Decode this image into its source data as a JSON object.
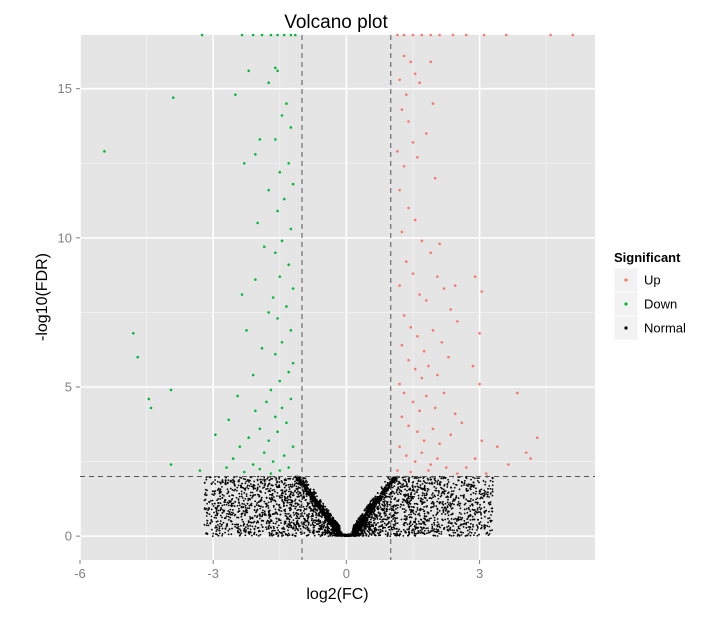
{
  "chart_data": {
    "type": "scatter",
    "title": "Volcano plot",
    "xlabel": "log2(FC)",
    "ylabel": "-log10(FDR)",
    "xlim": [
      -6,
      5.6
    ],
    "ylim": [
      -0.8,
      16.8
    ],
    "x_ticks": [
      {
        "value": -6,
        "label": "-6"
      },
      {
        "value": -3,
        "label": "-3"
      },
      {
        "value": 0,
        "label": "0"
      },
      {
        "value": 3,
        "label": "3"
      }
    ],
    "y_ticks": [
      {
        "value": 0,
        "label": "0"
      },
      {
        "value": 5,
        "label": "5"
      },
      {
        "value": 10,
        "label": "10"
      },
      {
        "value": 15,
        "label": "15"
      }
    ],
    "grid": true,
    "legend": {
      "title": "Significant",
      "position": "right"
    },
    "thresholds": {
      "log2fc": [
        -1,
        1
      ],
      "neg_log10_fdr": 2
    },
    "series": [
      {
        "name": "Up",
        "color": "#f8766d",
        "points": [
          [
            1.15,
            16.8
          ],
          [
            1.3,
            16.8
          ],
          [
            1.5,
            16.8
          ],
          [
            1.7,
            16.8
          ],
          [
            1.9,
            16.8
          ],
          [
            2.1,
            16.8
          ],
          [
            2.4,
            16.8
          ],
          [
            2.7,
            16.8
          ],
          [
            3.1,
            16.8
          ],
          [
            3.6,
            16.8
          ],
          [
            4.6,
            16.8
          ],
          [
            5.1,
            16.8
          ],
          [
            1.3,
            16.1
          ],
          [
            1.45,
            15.9
          ],
          [
            1.55,
            15.5
          ],
          [
            1.65,
            15.2
          ],
          [
            1.9,
            15.9
          ],
          [
            1.2,
            15.3
          ],
          [
            1.35,
            14.8
          ],
          [
            1.25,
            14.3
          ],
          [
            1.4,
            13.9
          ],
          [
            1.5,
            13.2
          ],
          [
            1.15,
            12.9
          ],
          [
            1.3,
            12.4
          ],
          [
            1.6,
            12.7
          ],
          [
            1.95,
            14.5
          ],
          [
            1.8,
            13.5
          ],
          [
            2.0,
            12.0
          ],
          [
            1.2,
            11.6
          ],
          [
            1.4,
            11.0
          ],
          [
            1.55,
            10.6
          ],
          [
            1.25,
            10.2
          ],
          [
            1.7,
            9.9
          ],
          [
            1.9,
            9.5
          ],
          [
            2.1,
            9.8
          ],
          [
            1.35,
            9.2
          ],
          [
            1.5,
            8.8
          ],
          [
            1.2,
            8.4
          ],
          [
            1.65,
            8.1
          ],
          [
            1.8,
            7.9
          ],
          [
            2.05,
            8.7
          ],
          [
            2.2,
            8.3
          ],
          [
            2.45,
            8.4
          ],
          [
            2.9,
            8.7
          ],
          [
            3.05,
            8.2
          ],
          [
            2.35,
            7.6
          ],
          [
            1.3,
            7.4
          ],
          [
            1.45,
            7.0
          ],
          [
            1.6,
            6.7
          ],
          [
            1.25,
            6.4
          ],
          [
            1.75,
            6.2
          ],
          [
            1.95,
            6.9
          ],
          [
            2.15,
            6.5
          ],
          [
            2.5,
            7.2
          ],
          [
            3.0,
            6.8
          ],
          [
            1.4,
            5.9
          ],
          [
            1.55,
            5.6
          ],
          [
            1.7,
            5.3
          ],
          [
            1.2,
            5.1
          ],
          [
            1.85,
            5.7
          ],
          [
            2.05,
            5.4
          ],
          [
            2.3,
            6.0
          ],
          [
            2.85,
            5.7
          ],
          [
            3.0,
            5.1
          ],
          [
            1.3,
            4.8
          ],
          [
            1.5,
            4.5
          ],
          [
            1.65,
            4.2
          ],
          [
            1.8,
            4.7
          ],
          [
            2.0,
            4.3
          ],
          [
            2.2,
            4.8
          ],
          [
            2.45,
            4.1
          ],
          [
            1.25,
            4.0
          ],
          [
            1.4,
            3.7
          ],
          [
            1.6,
            3.5
          ],
          [
            1.75,
            3.2
          ],
          [
            1.95,
            3.6
          ],
          [
            2.1,
            3.1
          ],
          [
            2.35,
            3.4
          ],
          [
            2.6,
            3.8
          ],
          [
            3.85,
            4.8
          ],
          [
            1.2,
            3.0
          ],
          [
            1.35,
            2.7
          ],
          [
            1.55,
            2.5
          ],
          [
            1.7,
            2.8
          ],
          [
            1.9,
            2.4
          ],
          [
            2.05,
            2.6
          ],
          [
            2.25,
            2.3
          ],
          [
            2.5,
            2.1
          ],
          [
            2.9,
            2.6
          ],
          [
            3.05,
            3.2
          ],
          [
            3.4,
            3.0
          ],
          [
            3.65,
            2.4
          ],
          [
            4.15,
            2.6
          ],
          [
            4.05,
            2.8
          ],
          [
            4.3,
            3.3
          ],
          [
            1.15,
            2.2
          ],
          [
            1.45,
            2.15
          ],
          [
            1.85,
            2.2
          ],
          [
            2.7,
            2.3
          ],
          [
            3.15,
            2.1
          ]
        ]
      },
      {
        "name": "Down",
        "color": "#00ba38",
        "points": [
          [
            -3.25,
            16.8
          ],
          [
            -2.35,
            16.8
          ],
          [
            -2.1,
            16.8
          ],
          [
            -1.9,
            16.8
          ],
          [
            -1.7,
            16.8
          ],
          [
            -1.55,
            16.8
          ],
          [
            -1.4,
            16.8
          ],
          [
            -1.25,
            16.8
          ],
          [
            -1.15,
            16.8
          ],
          [
            -1.55,
            15.6
          ],
          [
            -1.6,
            15.7
          ],
          [
            -1.75,
            15.2
          ],
          [
            -2.2,
            15.6
          ],
          [
            -2.5,
            14.8
          ],
          [
            -3.9,
            14.7
          ],
          [
            -1.35,
            14.5
          ],
          [
            -1.45,
            14.1
          ],
          [
            -1.25,
            13.7
          ],
          [
            -1.6,
            13.3
          ],
          [
            -1.95,
            13.3
          ],
          [
            -2.05,
            12.8
          ],
          [
            -5.45,
            12.9
          ],
          [
            -1.3,
            12.5
          ],
          [
            -1.5,
            12.2
          ],
          [
            -2.3,
            12.5
          ],
          [
            -1.2,
            11.8
          ],
          [
            -1.4,
            11.3
          ],
          [
            -1.55,
            10.9
          ],
          [
            -1.75,
            11.6
          ],
          [
            -2.0,
            10.5
          ],
          [
            -1.25,
            10.3
          ],
          [
            -1.45,
            9.9
          ],
          [
            -1.6,
            9.5
          ],
          [
            -1.3,
            9.1
          ],
          [
            -1.85,
            9.7
          ],
          [
            -1.5,
            8.7
          ],
          [
            -1.2,
            8.3
          ],
          [
            -1.65,
            8.0
          ],
          [
            -2.35,
            8.1
          ],
          [
            -2.05,
            8.6
          ],
          [
            -1.35,
            7.7
          ],
          [
            -1.55,
            7.3
          ],
          [
            -1.25,
            6.9
          ],
          [
            -1.75,
            7.5
          ],
          [
            -2.25,
            6.9
          ],
          [
            -1.45,
            6.5
          ],
          [
            -1.6,
            6.1
          ],
          [
            -1.2,
            5.8
          ],
          [
            -1.9,
            6.3
          ],
          [
            -4.8,
            6.8
          ],
          [
            -1.3,
            5.5
          ],
          [
            -1.5,
            5.2
          ],
          [
            -1.7,
            4.9
          ],
          [
            -2.1,
            5.4
          ],
          [
            -4.7,
            6.0
          ],
          [
            -1.25,
            4.6
          ],
          [
            -1.45,
            4.3
          ],
          [
            -1.6,
            4.0
          ],
          [
            -1.8,
            4.5
          ],
          [
            -2.05,
            4.2
          ],
          [
            -2.45,
            4.7
          ],
          [
            -1.35,
            3.8
          ],
          [
            -1.55,
            3.5
          ],
          [
            -1.75,
            3.2
          ],
          [
            -1.95,
            3.6
          ],
          [
            -2.2,
            3.3
          ],
          [
            -4.45,
            4.6
          ],
          [
            -4.4,
            4.3
          ],
          [
            -3.95,
            4.9
          ],
          [
            -2.65,
            3.9
          ],
          [
            -1.2,
            3.0
          ],
          [
            -1.4,
            2.7
          ],
          [
            -1.65,
            2.5
          ],
          [
            -1.85,
            2.8
          ],
          [
            -2.1,
            2.4
          ],
          [
            -2.4,
            3.0
          ],
          [
            -2.55,
            2.6
          ],
          [
            -2.95,
            3.4
          ],
          [
            -1.3,
            2.3
          ],
          [
            -1.5,
            2.2
          ],
          [
            -1.7,
            2.1
          ],
          [
            -1.95,
            2.25
          ],
          [
            -2.3,
            2.15
          ],
          [
            -2.7,
            2.3
          ],
          [
            -3.3,
            2.2
          ],
          [
            -3.95,
            2.4
          ]
        ]
      },
      {
        "name": "Normal",
        "color": "#000000",
        "generator": {
          "x_range": [
            -3.2,
            3.3
          ],
          "y_range": [
            0,
            2.0
          ],
          "count": 3600,
          "v_shape_slope": 2.0
        }
      }
    ]
  }
}
